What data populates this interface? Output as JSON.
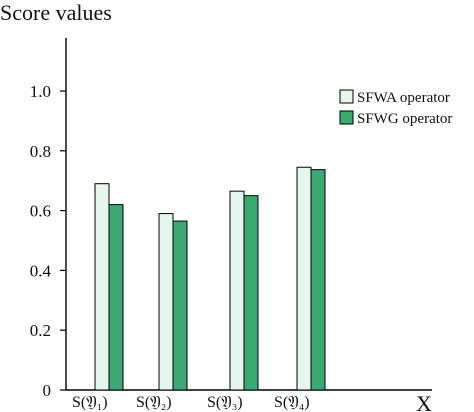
{
  "chart_data": {
    "type": "bar",
    "ylabel": "Score values",
    "xlabel": "X",
    "categories": [
      "S(𝔜₁)",
      "S(𝔜₂)",
      "S(𝔜₃)",
      "S(𝔜₄)"
    ],
    "series": [
      {
        "name": "SFWA operator",
        "values": [
          0.69,
          0.59,
          0.665,
          0.745
        ],
        "color": "#e6f5ee"
      },
      {
        "name": "SFWG operator",
        "values": [
          0.62,
          0.565,
          0.65,
          0.737
        ],
        "color": "#3aaa72"
      }
    ],
    "ylim": [
      0,
      1.0
    ],
    "yticks": [
      0,
      0.2,
      0.4,
      0.6,
      0.8,
      1.0
    ],
    "ytick_labels": [
      "0",
      "0.2",
      "0.4",
      "0.6",
      "0.8",
      "1.0"
    ],
    "legend_position": "top-right",
    "grid": false
  }
}
